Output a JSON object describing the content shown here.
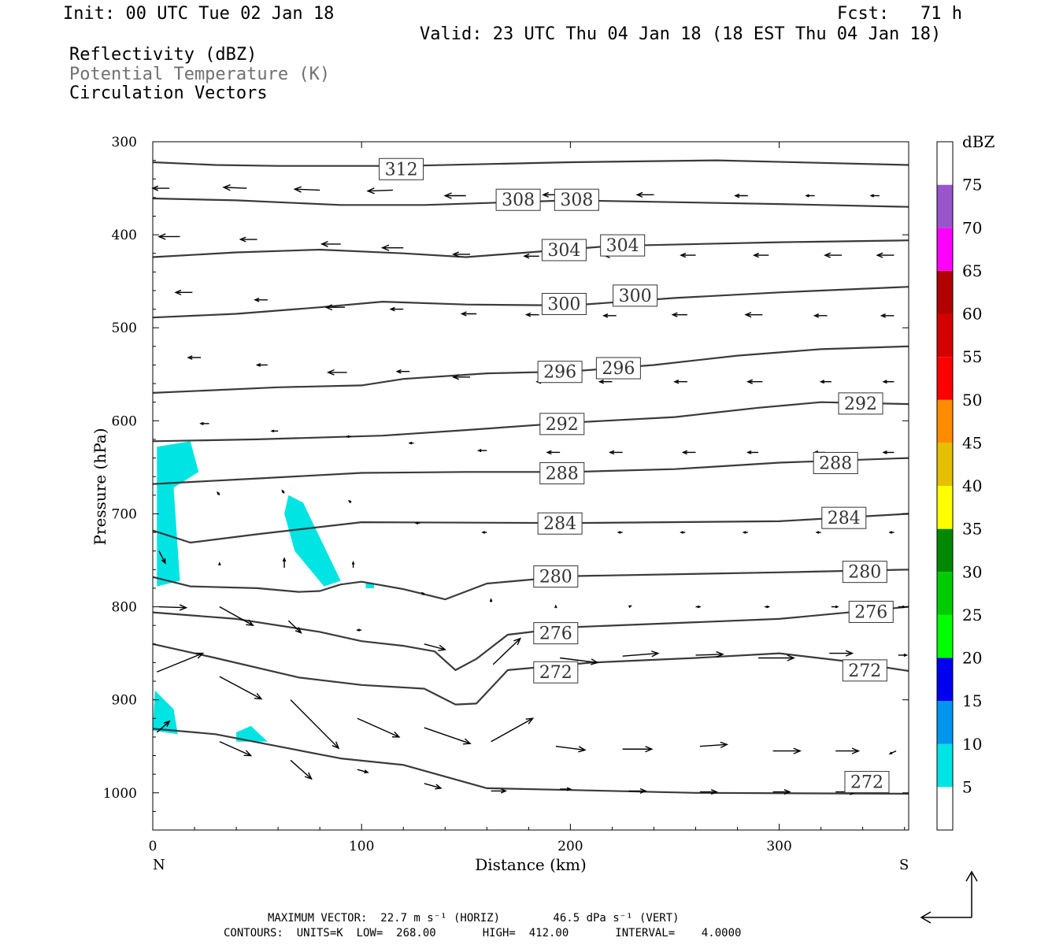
{
  "header": {
    "init": "Init: 00 UTC Tue 02 Jan 18",
    "fcst": "Fcst:   71 h",
    "valid": "Valid: 23 UTC Thu 04 Jan 18 (18 EST Thu 04 Jan 18)",
    "fields": [
      "Reflectivity (dBZ)",
      "Potential Temperature (K)",
      "Circulation Vectors"
    ]
  },
  "footer": {
    "line1": "MAXIMUM VECTOR:  22.7 m s⁻¹ (HORIZ)        46.5 dPa s⁻¹ (VERT)",
    "line2": "CONTOURS:  UNITS=K  LOW=  268.00       HIGH=  412.00       INTERVAL=    4.0000"
  },
  "colors": {
    "contour": "#3a3a3a",
    "refl5": "#00e4e4",
    "frame": "#000000"
  },
  "chart_data": {
    "type": "cross-section",
    "xlabel": "Distance (km)",
    "ylabel": "Pressure (hPa)",
    "xlim": [
      0,
      362
    ],
    "ylim": [
      1040,
      300
    ],
    "xticks": [
      0,
      100,
      200,
      300
    ],
    "yticks": [
      300,
      400,
      500,
      600,
      700,
      800,
      900,
      1000
    ],
    "endpoints": [
      "N",
      "S"
    ],
    "colorbar": {
      "units": "dBZ",
      "levels": [
        5,
        10,
        15,
        20,
        25,
        30,
        35,
        40,
        45,
        50,
        55,
        60,
        65,
        70,
        75
      ],
      "colors": [
        "#ffffff",
        "#00e4e4",
        "#0096ee",
        "#0000ee",
        "#00ff00",
        "#00cc00",
        "#008800",
        "#ffff00",
        "#e6c000",
        "#ff8c00",
        "#ff0000",
        "#d40000",
        "#b00000",
        "#ff00ff",
        "#9955cc",
        "#ffffff"
      ]
    },
    "theta_contours": [
      {
        "level": 312,
        "points": [
          [
            0,
            322
          ],
          [
            30,
            325
          ],
          [
            60,
            326
          ],
          [
            120,
            326
          ],
          [
            200,
            322
          ],
          [
            270,
            320
          ],
          [
            362,
            325
          ]
        ],
        "labels": [
          [
            119,
            329
          ]
        ]
      },
      {
        "level": 308,
        "points": [
          [
            0,
            361
          ],
          [
            40,
            363
          ],
          [
            90,
            368
          ],
          [
            130,
            368
          ],
          [
            200,
            363
          ],
          [
            300,
            367
          ],
          [
            362,
            370
          ]
        ],
        "labels": [
          [
            175,
            362
          ],
          [
            203,
            362
          ]
        ]
      },
      {
        "level": 304,
        "points": [
          [
            0,
            424
          ],
          [
            40,
            419
          ],
          [
            80,
            416
          ],
          [
            120,
            420
          ],
          [
            150,
            424
          ],
          [
            180,
            419
          ],
          [
            220,
            412
          ],
          [
            300,
            408
          ],
          [
            362,
            406
          ]
        ],
        "labels": [
          [
            197,
            416
          ],
          [
            225,
            411
          ]
        ]
      },
      {
        "level": 300,
        "points": [
          [
            0,
            489
          ],
          [
            40,
            485
          ],
          [
            80,
            478
          ],
          [
            110,
            472
          ],
          [
            150,
            475
          ],
          [
            200,
            476
          ],
          [
            250,
            468
          ],
          [
            300,
            462
          ],
          [
            362,
            456
          ]
        ],
        "labels": [
          [
            197,
            474
          ],
          [
            231,
            465
          ]
        ]
      },
      {
        "level": 296,
        "points": [
          [
            0,
            570
          ],
          [
            60,
            564
          ],
          [
            100,
            562
          ],
          [
            120,
            555
          ],
          [
            160,
            549
          ],
          [
            200,
            547
          ],
          [
            240,
            540
          ],
          [
            280,
            530
          ],
          [
            320,
            523
          ],
          [
            362,
            520
          ]
        ],
        "labels": [
          [
            195,
            547
          ],
          [
            223,
            543
          ]
        ]
      },
      {
        "level": 292,
        "points": [
          [
            0,
            622
          ],
          [
            50,
            620
          ],
          [
            110,
            616
          ],
          [
            150,
            610
          ],
          [
            200,
            602
          ],
          [
            250,
            596
          ],
          [
            290,
            586
          ],
          [
            320,
            580
          ],
          [
            362,
            582
          ]
        ],
        "labels": [
          [
            196,
            603
          ],
          [
            339,
            581
          ]
        ]
      },
      {
        "level": 288,
        "points": [
          [
            0,
            668
          ],
          [
            50,
            662
          ],
          [
            100,
            656
          ],
          [
            150,
            655
          ],
          [
            200,
            655
          ],
          [
            250,
            652
          ],
          [
            300,
            645
          ],
          [
            362,
            640
          ]
        ],
        "labels": [
          [
            196,
            656
          ],
          [
            327,
            645
          ]
        ]
      },
      {
        "level": 284,
        "points": [
          [
            0,
            718
          ],
          [
            18,
            731
          ],
          [
            50,
            722
          ],
          [
            100,
            709
          ],
          [
            200,
            710
          ],
          [
            300,
            708
          ],
          [
            362,
            700
          ]
        ],
        "labels": [
          [
            195,
            710
          ],
          [
            331,
            704
          ]
        ]
      },
      {
        "level": 280,
        "points": [
          [
            0,
            768
          ],
          [
            18,
            778
          ],
          [
            50,
            780
          ],
          [
            70,
            784
          ],
          [
            80,
            783
          ],
          [
            90,
            776
          ],
          [
            100,
            773
          ],
          [
            120,
            781
          ],
          [
            140,
            792
          ],
          [
            160,
            775
          ],
          [
            200,
            767
          ],
          [
            300,
            763
          ],
          [
            362,
            760
          ]
        ],
        "labels": [
          [
            193,
            767
          ],
          [
            341,
            762
          ]
        ]
      },
      {
        "level": 276,
        "points": [
          [
            0,
            806
          ],
          [
            40,
            813
          ],
          [
            80,
            827
          ],
          [
            100,
            837
          ],
          [
            120,
            842
          ],
          [
            135,
            848
          ],
          [
            145,
            868
          ],
          [
            155,
            856
          ],
          [
            170,
            830
          ],
          [
            200,
            822
          ],
          [
            300,
            813
          ],
          [
            362,
            800
          ]
        ],
        "labels": [
          [
            193,
            828
          ],
          [
            344,
            805
          ]
        ]
      },
      {
        "level": 272,
        "points": [
          [
            0,
            840
          ],
          [
            30,
            855
          ],
          [
            70,
            876
          ],
          [
            100,
            884
          ],
          [
            130,
            888
          ],
          [
            145,
            905
          ],
          [
            155,
            904
          ],
          [
            170,
            868
          ],
          [
            210,
            860
          ],
          [
            260,
            855
          ],
          [
            300,
            850
          ],
          [
            330,
            858
          ],
          [
            362,
            869
          ]
        ],
        "labels": [
          [
            193,
            870
          ],
          [
            341,
            868
          ]
        ]
      },
      {
        "level": 272,
        "points": [
          [
            0,
            931
          ],
          [
            30,
            937
          ],
          [
            60,
            950
          ],
          [
            90,
            963
          ],
          [
            120,
            970
          ],
          [
            160,
            995
          ],
          [
            200,
            997
          ],
          [
            260,
            1000
          ],
          [
            362,
            1001
          ]
        ],
        "labels": [
          [
            342,
            988
          ]
        ]
      }
    ],
    "reflectivity_5dbz": [
      [
        [
          2,
          628
        ],
        [
          18,
          622
        ],
        [
          22,
          655
        ],
        [
          10,
          672
        ],
        [
          13,
          772
        ],
        [
          2,
          778
        ]
      ],
      [
        [
          65,
          680
        ],
        [
          72,
          688
        ],
        [
          90,
          772
        ],
        [
          82,
          778
        ],
        [
          68,
          740
        ],
        [
          63,
          700
        ]
      ],
      [
        [
          1,
          890
        ],
        [
          10,
          910
        ],
        [
          12,
          937
        ],
        [
          0,
          933
        ]
      ],
      [
        [
          40,
          935
        ],
        [
          47,
          928
        ],
        [
          55,
          945
        ],
        [
          40,
          945
        ]
      ],
      [
        [
          102,
          775
        ],
        [
          106,
          775
        ],
        [
          106,
          780
        ],
        [
          102,
          780
        ]
      ]
    ],
    "vectors": [
      [
        8,
        350,
        -8,
        0
      ],
      [
        45,
        350,
        -11,
        -1
      ],
      [
        80,
        352,
        -12,
        -1
      ],
      [
        115,
        352,
        -12,
        1
      ],
      [
        150,
        358,
        -10,
        0
      ],
      [
        195,
        357,
        -8,
        0
      ],
      [
        240,
        357,
        -8,
        0
      ],
      [
        285,
        358,
        -6,
        0
      ],
      [
        317,
        358,
        -4,
        0
      ],
      [
        348,
        358,
        -4,
        0
      ],
      [
        13,
        402,
        -10,
        0
      ],
      [
        50,
        405,
        -8,
        0
      ],
      [
        90,
        410,
        -9,
        0
      ],
      [
        120,
        414,
        -10,
        0
      ],
      [
        152,
        421,
        -8,
        0
      ],
      [
        185,
        423,
        -7,
        0
      ],
      [
        225,
        422,
        -9,
        0
      ],
      [
        260,
        422,
        -7,
        0
      ],
      [
        295,
        422,
        -7,
        0
      ],
      [
        330,
        422,
        -8,
        0
      ],
      [
        355,
        422,
        -8,
        0
      ],
      [
        19,
        462,
        -8,
        0
      ],
      [
        55,
        470,
        -6,
        0
      ],
      [
        92,
        478,
        -9,
        0
      ],
      [
        120,
        480,
        -6,
        0
      ],
      [
        155,
        485,
        -7,
        0
      ],
      [
        185,
        486,
        -6,
        0
      ],
      [
        222,
        487,
        -6,
        0
      ],
      [
        256,
        486,
        -7,
        0
      ],
      [
        292,
        486,
        -8,
        0
      ],
      [
        323,
        487,
        -6,
        0
      ],
      [
        355,
        487,
        -6,
        0
      ],
      [
        23,
        532,
        -6,
        0
      ],
      [
        55,
        540,
        -5,
        0
      ],
      [
        93,
        548,
        -9,
        0
      ],
      [
        123,
        547,
        -6,
        0
      ],
      [
        152,
        553,
        -8,
        0
      ],
      [
        190,
        558,
        -6,
        0
      ],
      [
        220,
        558,
        -6,
        0
      ],
      [
        256,
        558,
        -6,
        0
      ],
      [
        292,
        558,
        -7,
        0
      ],
      [
        325,
        558,
        -5,
        0
      ],
      [
        355,
        558,
        -5,
        0
      ],
      [
        27,
        603,
        -4,
        0
      ],
      [
        60,
        611,
        -3,
        0
      ],
      [
        95,
        617,
        -2,
        0
      ],
      [
        125,
        624,
        -2,
        0
      ],
      [
        160,
        632,
        -4,
        0
      ],
      [
        195,
        634,
        -6,
        0
      ],
      [
        225,
        634,
        -6,
        0
      ],
      [
        260,
        634,
        -6,
        0
      ],
      [
        290,
        634,
        -5,
        0
      ],
      [
        322,
        634,
        -5,
        0
      ],
      [
        355,
        634,
        -5,
        0
      ],
      [
        32,
        680,
        -1,
        -3
      ],
      [
        63,
        678,
        -1,
        -3
      ],
      [
        95,
        688,
        -1,
        -2
      ],
      [
        128,
        710,
        -2,
        0
      ],
      [
        160,
        720,
        -2,
        0
      ],
      [
        195,
        711,
        -4,
        0
      ],
      [
        225,
        720,
        -2,
        0
      ],
      [
        255,
        720,
        -2,
        0
      ],
      [
        285,
        720,
        -2,
        0
      ],
      [
        320,
        720,
        -2,
        0
      ],
      [
        355,
        720,
        -2,
        0
      ],
      [
        3,
        740,
        3,
        13
      ],
      [
        32,
        755,
        0,
        -2
      ],
      [
        63,
        758,
        0,
        -10
      ],
      [
        96,
        758,
        0,
        -6
      ],
      [
        130,
        787,
        -1,
        -2
      ],
      [
        162,
        795,
        0,
        -3
      ],
      [
        193,
        800,
        0,
        -1
      ],
      [
        228,
        800,
        1,
        -1
      ],
      [
        260,
        800,
        2,
        0
      ],
      [
        293,
        800,
        2,
        0
      ],
      [
        325,
        800,
        3,
        0
      ],
      [
        357,
        800,
        3,
        0
      ],
      [
        3,
        800,
        13,
        1
      ],
      [
        32,
        800,
        16,
        20
      ],
      [
        65,
        815,
        6,
        13
      ],
      [
        100,
        825,
        -2,
        0
      ],
      [
        130,
        840,
        10,
        6
      ],
      [
        163,
        862,
        13,
        -28
      ],
      [
        195,
        855,
        18,
        5
      ],
      [
        225,
        853,
        17,
        -3
      ],
      [
        260,
        852,
        13,
        -1
      ],
      [
        290,
        855,
        17,
        0
      ],
      [
        324,
        850,
        11,
        0
      ],
      [
        357,
        852,
        4,
        0
      ],
      [
        2,
        870,
        22,
        -20
      ],
      [
        32,
        875,
        20,
        24
      ],
      [
        66,
        900,
        23,
        52
      ],
      [
        98,
        920,
        20,
        20
      ],
      [
        130,
        930,
        22,
        17
      ],
      [
        162,
        945,
        20,
        -25
      ],
      [
        193,
        950,
        14,
        4
      ],
      [
        225,
        953,
        14,
        0
      ],
      [
        262,
        950,
        13,
        -2
      ],
      [
        297,
        955,
        13,
        0
      ],
      [
        327,
        955,
        11,
        0
      ],
      [
        356,
        955,
        -3,
        3
      ],
      [
        2,
        935,
        6,
        -12
      ],
      [
        32,
        945,
        15,
        15
      ],
      [
        66,
        965,
        10,
        20
      ],
      [
        98,
        975,
        5,
        3
      ],
      [
        130,
        990,
        8,
        5
      ],
      [
        162,
        998,
        7,
        0
      ],
      [
        195,
        996,
        5,
        0
      ],
      [
        228,
        998,
        8,
        0
      ],
      [
        262,
        999,
        8,
        0
      ],
      [
        297,
        999,
        8,
        0
      ],
      [
        327,
        999,
        10,
        0
      ]
    ],
    "reference_vector": {
      "horiz": "22.7 m s⁻¹",
      "vert": "46.5 dPa s⁻¹"
    }
  }
}
